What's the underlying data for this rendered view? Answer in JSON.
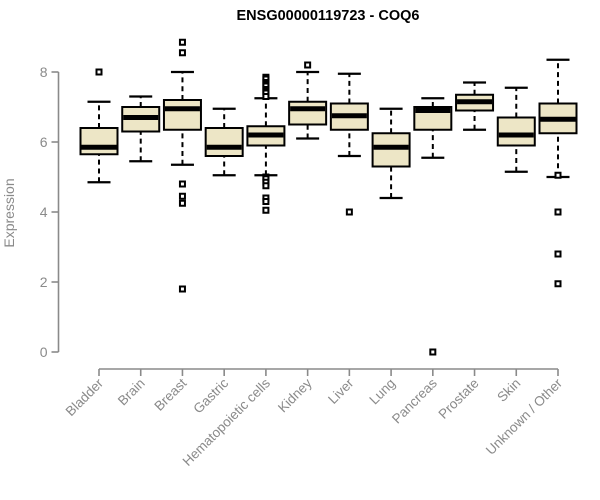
{
  "chart_data": {
    "type": "boxplot",
    "title": "ENSG00000119723 - COQ6",
    "ylabel": "Expression",
    "xlabel": "",
    "ylim": [
      0,
      8.9
    ],
    "yticks": [
      0,
      2,
      4,
      6,
      8
    ],
    "ytick_labels": [
      "0",
      "2",
      "4",
      "6",
      "8"
    ],
    "grid": false,
    "legend": "none",
    "categories": [
      "Bladder",
      "Brain",
      "Breast",
      "Gastric",
      "Hematopoietic cells",
      "Kidney",
      "Liver",
      "Lung",
      "Pancreas",
      "Prostate",
      "Skin",
      "Unknown / Other"
    ],
    "series": [
      {
        "name": "Bladder",
        "low": 4.85,
        "q1": 5.65,
        "median": 5.85,
        "q3": 6.4,
        "high": 7.15,
        "outliers": [
          8.0
        ]
      },
      {
        "name": "Brain",
        "low": 5.45,
        "q1": 6.3,
        "median": 6.7,
        "q3": 7.0,
        "high": 7.3,
        "outliers": []
      },
      {
        "name": "Breast",
        "low": 5.35,
        "q1": 6.35,
        "median": 6.95,
        "q3": 7.2,
        "high": 8.0,
        "outliers": [
          8.85,
          8.55,
          4.8,
          4.45,
          4.25,
          1.8
        ]
      },
      {
        "name": "Gastric",
        "low": 5.05,
        "q1": 5.6,
        "median": 5.85,
        "q3": 6.4,
        "high": 6.95,
        "outliers": []
      },
      {
        "name": "Hematopoietic cells",
        "low": 5.05,
        "q1": 5.9,
        "median": 6.2,
        "q3": 6.45,
        "high": 7.25,
        "outliers": [
          7.85,
          7.8,
          7.7,
          7.65,
          7.6,
          7.5,
          7.45,
          7.4,
          7.3,
          5.0,
          4.95,
          4.85,
          4.75,
          4.4,
          4.3,
          4.05
        ]
      },
      {
        "name": "Kidney",
        "low": 6.1,
        "q1": 6.5,
        "median": 6.95,
        "q3": 7.15,
        "high": 8.0,
        "outliers": [
          8.2
        ]
      },
      {
        "name": "Liver",
        "low": 5.6,
        "q1": 6.35,
        "median": 6.75,
        "q3": 7.1,
        "high": 7.95,
        "outliers": [
          4.0
        ]
      },
      {
        "name": "Lung",
        "low": 4.4,
        "q1": 5.3,
        "median": 5.85,
        "q3": 6.25,
        "high": 6.95,
        "outliers": []
      },
      {
        "name": "Pancreas",
        "low": 5.55,
        "q1": 6.35,
        "median": 6.9,
        "q3": 7.0,
        "high": 7.25,
        "outliers": [
          0.0
        ]
      },
      {
        "name": "Prostate",
        "low": 6.35,
        "q1": 6.9,
        "median": 7.15,
        "q3": 7.35,
        "high": 7.7,
        "outliers": []
      },
      {
        "name": "Skin",
        "low": 5.15,
        "q1": 5.9,
        "median": 6.2,
        "q3": 6.7,
        "high": 7.55,
        "outliers": []
      },
      {
        "name": "Unknown / Other",
        "low": 5.0,
        "q1": 6.25,
        "median": 6.65,
        "q3": 7.1,
        "high": 8.35,
        "outliers": [
          5.05,
          4.0,
          2.8,
          1.95
        ]
      }
    ],
    "colors": {
      "box_fill": "#EDE6C6",
      "box_border": "#000000",
      "median": "#000000",
      "whisker": "#000000",
      "outlier": "#000000",
      "axis": "#8a8a8a",
      "axis_text": "#8a8a8a",
      "title": "#000000",
      "background": "#ffffff"
    }
  }
}
